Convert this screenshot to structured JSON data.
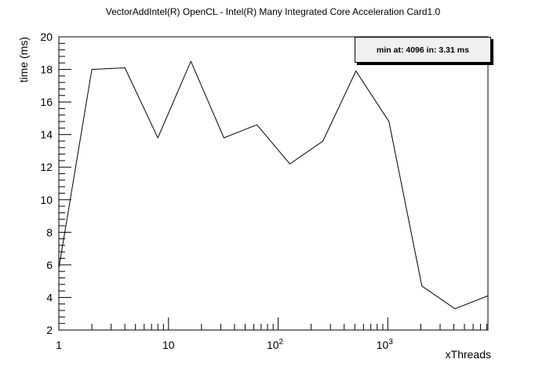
{
  "chart_data": {
    "type": "line",
    "title": "VectorAddIntel(R) OpenCL - Intel(R) Many Integrated Core Acceleration Card1.0",
    "xlabel": "xThreads",
    "ylabel": "time (ms)",
    "xscale": "log",
    "xlim": [
      1,
      8192
    ],
    "ylim": [
      2,
      20
    ],
    "grid": false,
    "x_tick_labels": [
      {
        "value": 1,
        "label": "1"
      },
      {
        "value": 10,
        "label": "10"
      },
      {
        "value": 100,
        "label": "10",
        "sup": "2"
      },
      {
        "value": 1000,
        "label": "10",
        "sup": "3"
      }
    ],
    "y_ticks": [
      2,
      4,
      6,
      8,
      10,
      12,
      14,
      16,
      18,
      20
    ],
    "series": [
      {
        "x": [
          1,
          2,
          4,
          8,
          16,
          32,
          64,
          128,
          256,
          512,
          1024,
          2048,
          4096,
          8192
        ],
        "y": [
          5.8,
          18.0,
          18.1,
          13.8,
          18.5,
          13.8,
          14.6,
          12.2,
          13.6,
          17.9,
          14.8,
          4.7,
          3.31,
          4.1
        ]
      }
    ],
    "annotation": "min at: 4096 in: 3.31 ms"
  }
}
